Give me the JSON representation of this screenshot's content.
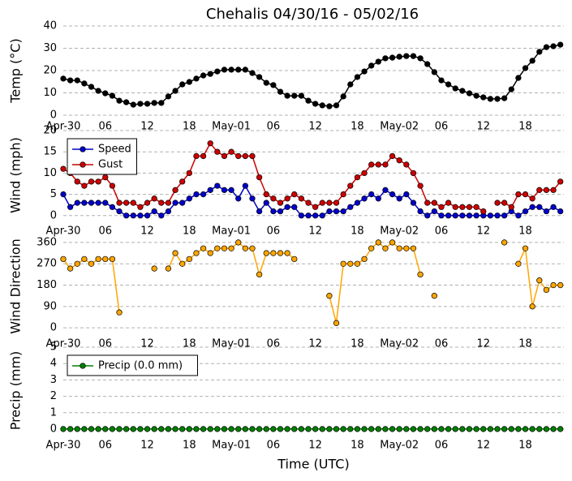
{
  "chart_data": [
    {
      "type": "line",
      "title": "Chehalis 04/30/16 - 05/02/16",
      "ylabel": "Temp (°C)",
      "categories": [
        "Apr-30",
        null,
        null,
        null,
        null,
        null,
        "06",
        null,
        null,
        null,
        null,
        null,
        "12",
        null,
        null,
        null,
        null,
        null,
        "18",
        null,
        null,
        null,
        null,
        null,
        "May-01",
        null,
        null,
        null,
        null,
        null,
        "06",
        null,
        null,
        null,
        null,
        null,
        "12",
        null,
        null,
        null,
        null,
        null,
        "18",
        null,
        null,
        null,
        null,
        null,
        "May-02",
        null,
        null,
        null,
        null,
        null,
        "06",
        null,
        null,
        null,
        null,
        null,
        "12",
        null,
        null,
        null,
        null,
        null,
        "18",
        null,
        null,
        null,
        null,
        null
      ],
      "values": [
        16.4,
        15.6,
        15.6,
        14.2,
        12.7,
        10.9,
        9.8,
        8.7,
        6.5,
        5.8,
        4.7,
        5.1,
        5.1,
        5.5,
        5.5,
        8.4,
        10.9,
        13.8,
        14.9,
        16.4,
        17.8,
        18.5,
        19.6,
        20.4,
        20.4,
        20.4,
        20.4,
        18.9,
        17.1,
        14.5,
        13.5,
        10.5,
        8.7,
        8.7,
        8.7,
        6.5,
        5.1,
        4.4,
        4.0,
        4.4,
        8.4,
        13.8,
        17.1,
        19.6,
        22.2,
        24.0,
        25.5,
        25.8,
        26.2,
        26.5,
        26.5,
        25.5,
        22.9,
        19.3,
        15.6,
        13.8,
        12.0,
        10.9,
        9.8,
        8.7,
        8.0,
        7.3,
        7.3,
        7.6,
        11.6,
        16.7,
        21.1,
        24.4,
        28.4,
        30.5,
        30.9,
        31.6
      ],
      "color": "#000000",
      "ylim": [
        0,
        40
      ],
      "yticks": [
        0,
        10,
        20,
        30,
        40
      ],
      "grid": true
    },
    {
      "type": "line",
      "ylabel": "Wind (mph)",
      "categories": [
        "Apr-30",
        null,
        null,
        null,
        null,
        null,
        "06",
        null,
        null,
        null,
        null,
        null,
        "12",
        null,
        null,
        null,
        null,
        null,
        "18",
        null,
        null,
        null,
        null,
        null,
        "May-01",
        null,
        null,
        null,
        null,
        null,
        "06",
        null,
        null,
        null,
        null,
        null,
        "12",
        null,
        null,
        null,
        null,
        null,
        "18",
        null,
        null,
        null,
        null,
        null,
        "May-02",
        null,
        null,
        null,
        null,
        null,
        "06",
        null,
        null,
        null,
        null,
        null,
        "12",
        null,
        null,
        null,
        null,
        null,
        "18",
        null,
        null,
        null,
        null,
        null
      ],
      "series": [
        {
          "name": "Speed",
          "color": "#0000cc",
          "values": [
            5,
            2,
            3,
            3,
            3,
            3,
            3,
            2,
            1,
            0,
            0,
            0,
            0,
            1,
            0,
            1,
            3,
            3,
            4,
            5,
            5,
            6,
            7,
            6,
            6,
            4,
            7,
            4,
            1,
            3,
            1,
            1,
            2,
            2,
            0,
            0,
            0,
            0,
            1,
            1,
            1,
            2,
            3,
            4,
            5,
            4,
            6,
            5,
            4,
            5,
            3,
            1,
            0,
            1,
            0,
            0,
            0,
            0,
            0,
            0,
            0,
            0,
            0,
            0,
            1,
            0,
            1,
            2,
            2,
            1,
            2,
            1
          ]
        },
        {
          "name": "Gust",
          "color": "#cc0000",
          "values": [
            11,
            10,
            8,
            7,
            8,
            8,
            9,
            7,
            3,
            3,
            3,
            2,
            3,
            4,
            3,
            3,
            6,
            8,
            10,
            14,
            14,
            17,
            15,
            14,
            15,
            14,
            14,
            14,
            9,
            5,
            4,
            3,
            4,
            5,
            4,
            3,
            2,
            3,
            3,
            3,
            5,
            7,
            9,
            10,
            12,
            12,
            12,
            14,
            13,
            12,
            10,
            7,
            3,
            3,
            2,
            3,
            2,
            2,
            2,
            2,
            1,
            null,
            3,
            3,
            2,
            5,
            5,
            4,
            6,
            6,
            6,
            8
          ]
        }
      ],
      "ylim": [
        -1,
        20
      ],
      "yticks": [
        0,
        5,
        10,
        15,
        20
      ],
      "grid": true,
      "legend": "upper left"
    },
    {
      "type": "line",
      "ylabel": "Wind Direction",
      "categories": [
        "Apr-30",
        null,
        null,
        null,
        null,
        null,
        "06",
        null,
        null,
        null,
        null,
        null,
        "12",
        null,
        null,
        null,
        null,
        null,
        "18",
        null,
        null,
        null,
        null,
        null,
        "May-01",
        null,
        null,
        null,
        null,
        null,
        "06",
        null,
        null,
        null,
        null,
        null,
        "12",
        null,
        null,
        null,
        null,
        null,
        "18",
        null,
        null,
        null,
        null,
        null,
        "May-02",
        null,
        null,
        null,
        null,
        null,
        "06",
        null,
        null,
        null,
        null,
        null,
        "12",
        null,
        null,
        null,
        null,
        null,
        "18",
        null,
        null,
        null,
        null,
        null
      ],
      "values": [
        290,
        250,
        270,
        290,
        270,
        290,
        290,
        290,
        65,
        null,
        null,
        null,
        null,
        250,
        null,
        250,
        315,
        270,
        290,
        315,
        335,
        315,
        335,
        335,
        335,
        360,
        335,
        335,
        225,
        315,
        315,
        315,
        315,
        290,
        null,
        null,
        null,
        null,
        135,
        20,
        270,
        270,
        270,
        290,
        335,
        360,
        335,
        360,
        335,
        335,
        335,
        225,
        null,
        135,
        null,
        null,
        null,
        null,
        null,
        null,
        null,
        null,
        null,
        360,
        null,
        270,
        335,
        90,
        200,
        160,
        180,
        180
      ],
      "color": "#ffa500",
      "ylim": [
        -20,
        370
      ],
      "yticks": [
        0,
        90,
        180,
        270,
        360
      ],
      "grid": true
    },
    {
      "type": "line",
      "ylabel": "Precip (mm)",
      "xlabel": "Time (UTC)",
      "categories": [
        "Apr-30",
        null,
        null,
        null,
        null,
        null,
        "06",
        null,
        null,
        null,
        null,
        null,
        "12",
        null,
        null,
        null,
        null,
        null,
        "18",
        null,
        null,
        null,
        null,
        null,
        "May-01",
        null,
        null,
        null,
        null,
        null,
        "06",
        null,
        null,
        null,
        null,
        null,
        "12",
        null,
        null,
        null,
        null,
        null,
        "18",
        null,
        null,
        null,
        null,
        null,
        "May-02",
        null,
        null,
        null,
        null,
        null,
        "06",
        null,
        null,
        null,
        null,
        null,
        "12",
        null,
        null,
        null,
        null,
        null,
        "18",
        null,
        null,
        null,
        null,
        null
      ],
      "series": [
        {
          "name": "Precip (0.0 mm)",
          "color": "#008000",
          "values": [
            0,
            0,
            0,
            0,
            0,
            0,
            0,
            0,
            0,
            0,
            0,
            0,
            0,
            0,
            0,
            0,
            0,
            0,
            0,
            0,
            0,
            0,
            0,
            0,
            0,
            0,
            0,
            0,
            0,
            0,
            0,
            0,
            0,
            0,
            0,
            0,
            0,
            0,
            0,
            0,
            0,
            0,
            0,
            0,
            0,
            0,
            0,
            0,
            0,
            0,
            0,
            0,
            0,
            0,
            0,
            0,
            0,
            0,
            0,
            0,
            0,
            0,
            0,
            0,
            0,
            0,
            0,
            0,
            0,
            0,
            0,
            0
          ]
        }
      ],
      "ylim": [
        -0.3,
        5
      ],
      "yticks": [
        0,
        1,
        2,
        3,
        4,
        5
      ],
      "grid": true,
      "legend": "upper left"
    }
  ]
}
